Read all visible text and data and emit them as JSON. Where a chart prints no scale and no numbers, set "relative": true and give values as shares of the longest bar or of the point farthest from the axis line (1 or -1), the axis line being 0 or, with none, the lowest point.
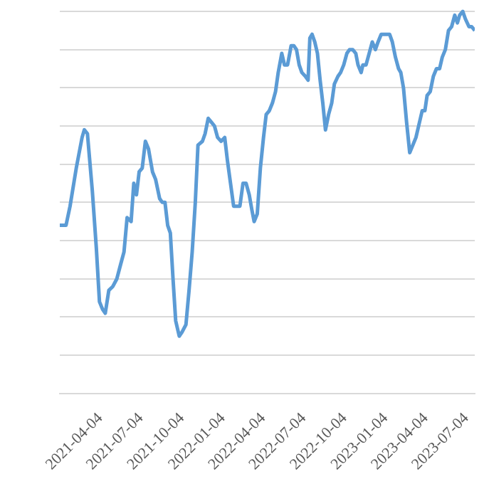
{
  "chart_data": {
    "type": "line",
    "relative": true,
    "grid": "y",
    "marker": "none",
    "line_style": "solid",
    "xlim": [
      "2021-01-03",
      "2023-07-23"
    ],
    "xticks": [
      "2021-04-04",
      "2021-07-04",
      "2021-10-04",
      "2022-01-04",
      "2022-04-04",
      "2022-07-04",
      "2022-10-04",
      "2023-01-04",
      "2023-04-04",
      "2023-07-04"
    ],
    "x": [
      "2021-01-03",
      "2021-01-17",
      "2021-01-26",
      "2021-02-09",
      "2021-02-22",
      "2021-02-27",
      "2021-03-06",
      "2021-03-17",
      "2021-03-26",
      "2021-04-02",
      "2021-04-09",
      "2021-04-15",
      "2021-04-23",
      "2021-05-02",
      "2021-05-11",
      "2021-05-20",
      "2021-05-27",
      "2021-06-03",
      "2021-06-12",
      "2021-06-18",
      "2021-06-24",
      "2021-06-30",
      "2021-07-07",
      "2021-07-14",
      "2021-07-21",
      "2021-07-30",
      "2021-08-06",
      "2021-08-15",
      "2021-08-21",
      "2021-08-27",
      "2021-09-02",
      "2021-09-08",
      "2021-09-14",
      "2021-09-20",
      "2021-09-28",
      "2021-10-04",
      "2021-10-13",
      "2021-10-20",
      "2021-10-27",
      "2021-11-03",
      "2021-11-09",
      "2021-11-19",
      "2021-11-25",
      "2021-12-02",
      "2021-12-09",
      "2021-12-16",
      "2021-12-23",
      "2021-12-31",
      "2022-01-08",
      "2022-01-14",
      "2022-01-21",
      "2022-01-28",
      "2022-02-04",
      "2022-02-11",
      "2022-02-18",
      "2022-02-25",
      "2022-03-04",
      "2022-03-10",
      "2022-03-15",
      "2022-03-22",
      "2022-03-29",
      "2022-04-05",
      "2022-04-11",
      "2022-04-18",
      "2022-04-25",
      "2022-05-02",
      "2022-05-08",
      "2022-05-16",
      "2022-05-22",
      "2022-05-29",
      "2022-06-06",
      "2022-06-12",
      "2022-06-18",
      "2022-06-24",
      "2022-06-30",
      "2022-07-08",
      "2022-07-14",
      "2022-07-18",
      "2022-07-23",
      "2022-07-29",
      "2022-08-04",
      "2022-08-10",
      "2022-08-16",
      "2022-08-22",
      "2022-08-29",
      "2022-09-05",
      "2022-09-11",
      "2022-09-19",
      "2022-09-25",
      "2022-10-02",
      "2022-10-09",
      "2022-10-15",
      "2022-10-22",
      "2022-10-29",
      "2022-11-03",
      "2022-11-10",
      "2022-11-14",
      "2022-11-21",
      "2022-11-28",
      "2022-12-05",
      "2022-12-12",
      "2022-12-18",
      "2022-12-25",
      "2023-01-01",
      "2023-01-06",
      "2023-01-13",
      "2023-01-19",
      "2023-01-26",
      "2023-02-02",
      "2023-02-07",
      "2023-02-13",
      "2023-02-20",
      "2023-02-27",
      "2023-03-06",
      "2023-03-13",
      "2023-03-19",
      "2023-03-27",
      "2023-04-02",
      "2023-04-07",
      "2023-04-14",
      "2023-04-21",
      "2023-04-28",
      "2023-05-05",
      "2023-05-11",
      "2023-05-18",
      "2023-05-25",
      "2023-06-01",
      "2023-06-08",
      "2023-06-14",
      "2023-06-19",
      "2023-06-26",
      "2023-07-02",
      "2023-07-10",
      "2023-07-16",
      "2023-07-23"
    ],
    "series": [
      {
        "color": "#5b9bd5",
        "values": [
          0.44,
          0.44,
          0.49,
          0.59,
          0.67,
          0.69,
          0.68,
          0.53,
          0.38,
          0.24,
          0.22,
          0.21,
          0.27,
          0.28,
          0.3,
          0.34,
          0.37,
          0.46,
          0.45,
          0.55,
          0.52,
          0.58,
          0.59,
          0.66,
          0.64,
          0.58,
          0.56,
          0.51,
          0.5,
          0.5,
          0.44,
          0.42,
          0.3,
          0.19,
          0.15,
          0.16,
          0.18,
          0.27,
          0.37,
          0.5,
          0.65,
          0.66,
          0.68,
          0.72,
          0.71,
          0.7,
          0.67,
          0.66,
          0.67,
          0.61,
          0.55,
          0.49,
          0.49,
          0.49,
          0.55,
          0.55,
          0.52,
          0.48,
          0.45,
          0.47,
          0.59,
          0.67,
          0.73,
          0.74,
          0.76,
          0.79,
          0.84,
          0.89,
          0.86,
          0.86,
          0.91,
          0.91,
          0.9,
          0.86,
          0.84,
          0.83,
          0.82,
          0.93,
          0.94,
          0.92,
          0.89,
          0.82,
          0.76,
          0.69,
          0.73,
          0.76,
          0.81,
          0.83,
          0.84,
          0.86,
          0.89,
          0.9,
          0.9,
          0.89,
          0.86,
          0.84,
          0.86,
          0.86,
          0.89,
          0.92,
          0.9,
          0.92,
          0.94,
          0.94,
          0.94,
          0.94,
          0.92,
          0.88,
          0.85,
          0.84,
          0.8,
          0.71,
          0.63,
          0.65,
          0.67,
          0.7,
          0.74,
          0.74,
          0.78,
          0.79,
          0.83,
          0.85,
          0.85,
          0.88,
          0.9,
          0.95,
          0.96,
          0.99,
          0.97,
          0.99,
          1,
          0.98,
          0.96,
          0.96,
          0.95
        ]
      }
    ]
  }
}
